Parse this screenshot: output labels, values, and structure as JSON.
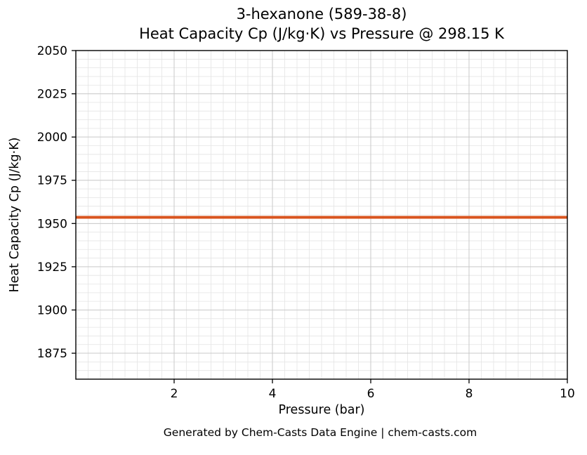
{
  "figure": {
    "title_line1": "3-hexanone (589-38-8)",
    "title_line2": "Heat Capacity Cp (J/kg·K) vs Pressure @ 298.15 K",
    "footer": "Generated by Chem-Casts Data Engine | chem-casts.com"
  },
  "chart_data": {
    "type": "line",
    "title": "3-hexanone (589-38-8)",
    "subtitle": "Heat Capacity Cp (J/kg·K) vs Pressure @ 298.15 K",
    "xlabel": "Pressure (bar)",
    "ylabel": "Heat Capacity Cp (J/kg·K)",
    "xlim": [
      0,
      10
    ],
    "ylim": [
      1860,
      2050
    ],
    "x_ticks": [
      2,
      4,
      6,
      8,
      10
    ],
    "y_ticks": [
      1875,
      1900,
      1925,
      1950,
      1975,
      2000,
      2025,
      2050
    ],
    "x_minor_step": 0.25,
    "y_minor_step": 5,
    "grid": "both",
    "legend": "none",
    "series": [
      {
        "name": "Cp",
        "color": "#d9541f",
        "linewidth": 4,
        "x": [
          0,
          10
        ],
        "y": [
          1953.6,
          1953.6
        ]
      }
    ]
  },
  "colors": {
    "line": "#d9541f",
    "grid_major": "#c9c9c9",
    "grid_minor": "#e4e4e4",
    "axis": "#000000",
    "footer_text": "#595959"
  }
}
